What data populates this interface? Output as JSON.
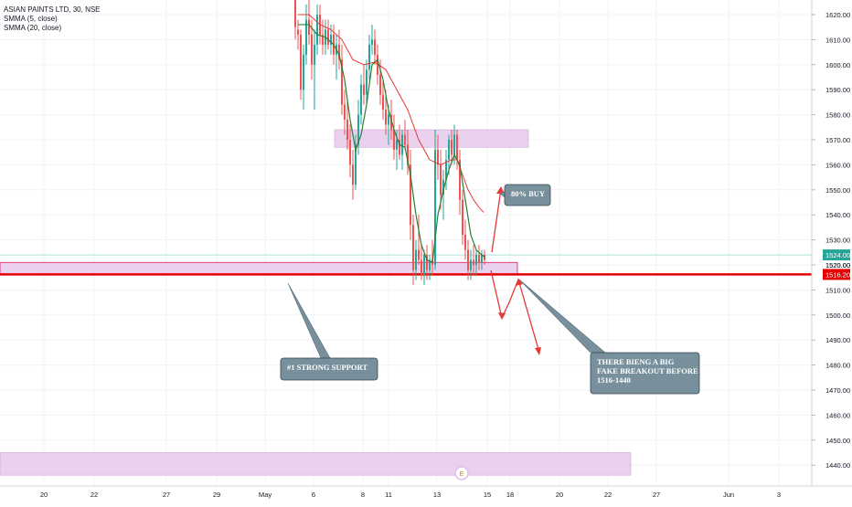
{
  "legend": {
    "symbol": "ASIAN PAINTS LTD, 30, NSE",
    "ind1": "SMMA (5, close)",
    "ind2": "SMMA (20, close)"
  },
  "colors": {
    "up": "#26a69a",
    "down": "#ef5350",
    "smma5": "#2e7d32",
    "smma20": "#e53935",
    "zone": "#e1bee7",
    "callout": "#78909c",
    "current": "#26a69a",
    "level": "#e60000"
  },
  "chart_data": {
    "type": "candlestick",
    "y_axis": {
      "min": 1434,
      "max": 1626,
      "ticks": [
        1440,
        1450,
        1460,
        1470,
        1480,
        1490,
        1500,
        1510,
        1520,
        1530,
        1540,
        1550,
        1560,
        1570,
        1580,
        1590,
        1600,
        1610,
        1620
      ]
    },
    "x_axis": {
      "tick_labels": [
        "20",
        "22",
        "27",
        "29",
        "May",
        "6",
        "8",
        "11",
        "13",
        "15",
        "18",
        "20",
        "22",
        "27",
        "Jun",
        "3"
      ]
    },
    "price_labels": {
      "current": "1524.00",
      "level": "1516.20",
      "near": "1520.00"
    },
    "candles": [
      {
        "x": 323,
        "o": 1628,
        "h": 1628,
        "l": 1610,
        "c": 1615
      },
      {
        "x": 326,
        "o": 1614,
        "h": 1618,
        "l": 1606,
        "c": 1612
      },
      {
        "x": 329,
        "o": 1612,
        "h": 1614,
        "l": 1586,
        "c": 1590
      },
      {
        "x": 332,
        "o": 1590,
        "h": 1608,
        "l": 1582,
        "c": 1604
      },
      {
        "x": 335,
        "o": 1604,
        "h": 1624,
        "l": 1600,
        "c": 1618
      },
      {
        "x": 338,
        "o": 1618,
        "h": 1626,
        "l": 1608,
        "c": 1612
      },
      {
        "x": 341,
        "o": 1612,
        "h": 1618,
        "l": 1594,
        "c": 1600
      },
      {
        "x": 344,
        "o": 1600,
        "h": 1614,
        "l": 1582,
        "c": 1608
      },
      {
        "x": 347,
        "o": 1608,
        "h": 1624,
        "l": 1604,
        "c": 1620
      },
      {
        "x": 350,
        "o": 1620,
        "h": 1624,
        "l": 1608,
        "c": 1612
      },
      {
        "x": 353,
        "o": 1612,
        "h": 1618,
        "l": 1604,
        "c": 1608
      },
      {
        "x": 356,
        "o": 1608,
        "h": 1618,
        "l": 1604,
        "c": 1614
      },
      {
        "x": 359,
        "o": 1614,
        "h": 1618,
        "l": 1606,
        "c": 1608
      },
      {
        "x": 362,
        "o": 1608,
        "h": 1616,
        "l": 1604,
        "c": 1612
      },
      {
        "x": 365,
        "o": 1612,
        "h": 1616,
        "l": 1600,
        "c": 1604
      },
      {
        "x": 368,
        "o": 1604,
        "h": 1612,
        "l": 1594,
        "c": 1608
      },
      {
        "x": 371,
        "o": 1608,
        "h": 1614,
        "l": 1598,
        "c": 1602
      },
      {
        "x": 374,
        "o": 1602,
        "h": 1608,
        "l": 1580,
        "c": 1584
      },
      {
        "x": 377,
        "o": 1584,
        "h": 1590,
        "l": 1572,
        "c": 1578
      },
      {
        "x": 380,
        "o": 1578,
        "h": 1586,
        "l": 1566,
        "c": 1570
      },
      {
        "x": 383,
        "o": 1570,
        "h": 1576,
        "l": 1555,
        "c": 1560
      },
      {
        "x": 386,
        "o": 1560,
        "h": 1566,
        "l": 1546,
        "c": 1552
      },
      {
        "x": 389,
        "o": 1552,
        "h": 1572,
        "l": 1550,
        "c": 1568
      },
      {
        "x": 392,
        "o": 1568,
        "h": 1586,
        "l": 1564,
        "c": 1580
      },
      {
        "x": 395,
        "o": 1580,
        "h": 1596,
        "l": 1576,
        "c": 1592
      },
      {
        "x": 398,
        "o": 1592,
        "h": 1600,
        "l": 1584,
        "c": 1588
      },
      {
        "x": 401,
        "o": 1588,
        "h": 1602,
        "l": 1584,
        "c": 1598
      },
      {
        "x": 404,
        "o": 1598,
        "h": 1612,
        "l": 1594,
        "c": 1608
      },
      {
        "x": 407,
        "o": 1608,
        "h": 1616,
        "l": 1604,
        "c": 1610
      },
      {
        "x": 410,
        "o": 1610,
        "h": 1614,
        "l": 1600,
        "c": 1604
      },
      {
        "x": 413,
        "o": 1604,
        "h": 1608,
        "l": 1592,
        "c": 1596
      },
      {
        "x": 416,
        "o": 1596,
        "h": 1602,
        "l": 1584,
        "c": 1588
      },
      {
        "x": 419,
        "o": 1588,
        "h": 1594,
        "l": 1578,
        "c": 1582
      },
      {
        "x": 422,
        "o": 1582,
        "h": 1590,
        "l": 1572,
        "c": 1576
      },
      {
        "x": 425,
        "o": 1576,
        "h": 1584,
        "l": 1568,
        "c": 1580
      },
      {
        "x": 428,
        "o": 1580,
        "h": 1586,
        "l": 1570,
        "c": 1574
      },
      {
        "x": 431,
        "o": 1574,
        "h": 1580,
        "l": 1562,
        "c": 1566
      },
      {
        "x": 434,
        "o": 1566,
        "h": 1574,
        "l": 1558,
        "c": 1570
      },
      {
        "x": 437,
        "o": 1570,
        "h": 1576,
        "l": 1562,
        "c": 1564
      },
      {
        "x": 440,
        "o": 1564,
        "h": 1574,
        "l": 1558,
        "c": 1572
      },
      {
        "x": 443,
        "o": 1572,
        "h": 1578,
        "l": 1566,
        "c": 1568
      },
      {
        "x": 446,
        "o": 1568,
        "h": 1574,
        "l": 1556,
        "c": 1560
      },
      {
        "x": 449,
        "o": 1560,
        "h": 1566,
        "l": 1530,
        "c": 1536
      },
      {
        "x": 452,
        "o": 1536,
        "h": 1540,
        "l": 1512,
        "c": 1518
      },
      {
        "x": 455,
        "o": 1518,
        "h": 1530,
        "l": 1514,
        "c": 1526
      },
      {
        "x": 458,
        "o": 1526,
        "h": 1540,
        "l": 1520,
        "c": 1522
      },
      {
        "x": 461,
        "o": 1522,
        "h": 1528,
        "l": 1514,
        "c": 1516
      },
      {
        "x": 464,
        "o": 1516,
        "h": 1526,
        "l": 1512,
        "c": 1524
      },
      {
        "x": 467,
        "o": 1524,
        "h": 1528,
        "l": 1514,
        "c": 1518
      },
      {
        "x": 470,
        "o": 1518,
        "h": 1524,
        "l": 1514,
        "c": 1522
      },
      {
        "x": 473,
        "o": 1522,
        "h": 1530,
        "l": 1516,
        "c": 1520
      },
      {
        "x": 476,
        "o": 1520,
        "h": 1574,
        "l": 1518,
        "c": 1566
      },
      {
        "x": 479,
        "o": 1566,
        "h": 1572,
        "l": 1554,
        "c": 1560
      },
      {
        "x": 482,
        "o": 1560,
        "h": 1566,
        "l": 1542,
        "c": 1548
      },
      {
        "x": 485,
        "o": 1548,
        "h": 1558,
        "l": 1538,
        "c": 1554
      },
      {
        "x": 488,
        "o": 1554,
        "h": 1566,
        "l": 1550,
        "c": 1562
      },
      {
        "x": 491,
        "o": 1562,
        "h": 1572,
        "l": 1556,
        "c": 1570
      },
      {
        "x": 494,
        "o": 1570,
        "h": 1574,
        "l": 1560,
        "c": 1564
      },
      {
        "x": 497,
        "o": 1564,
        "h": 1576,
        "l": 1560,
        "c": 1572
      },
      {
        "x": 500,
        "o": 1572,
        "h": 1574,
        "l": 1558,
        "c": 1562
      },
      {
        "x": 503,
        "o": 1562,
        "h": 1566,
        "l": 1540,
        "c": 1546
      },
      {
        "x": 506,
        "o": 1546,
        "h": 1550,
        "l": 1528,
        "c": 1532
      },
      {
        "x": 509,
        "o": 1532,
        "h": 1538,
        "l": 1522,
        "c": 1526
      },
      {
        "x": 512,
        "o": 1526,
        "h": 1530,
        "l": 1514,
        "c": 1518
      },
      {
        "x": 515,
        "o": 1518,
        "h": 1526,
        "l": 1514,
        "c": 1522
      },
      {
        "x": 518,
        "o": 1522,
        "h": 1528,
        "l": 1516,
        "c": 1520
      },
      {
        "x": 521,
        "o": 1520,
        "h": 1526,
        "l": 1516,
        "c": 1524
      },
      {
        "x": 524,
        "o": 1524,
        "h": 1528,
        "l": 1518,
        "c": 1521
      },
      {
        "x": 527,
        "o": 1521,
        "h": 1526,
        "l": 1518,
        "c": 1524
      },
      {
        "x": 530,
        "o": 1524,
        "h": 1526,
        "l": 1520,
        "c": 1522
      }
    ],
    "smma5": [
      [
        326,
        1616
      ],
      [
        338,
        1616
      ],
      [
        347,
        1612
      ],
      [
        356,
        1611
      ],
      [
        365,
        1608
      ],
      [
        371,
        1604
      ],
      [
        377,
        1594
      ],
      [
        383,
        1578
      ],
      [
        389,
        1566
      ],
      [
        395,
        1572
      ],
      [
        401,
        1584
      ],
      [
        407,
        1600
      ],
      [
        413,
        1602
      ],
      [
        419,
        1594
      ],
      [
        425,
        1582
      ],
      [
        431,
        1574
      ],
      [
        437,
        1568
      ],
      [
        443,
        1567
      ],
      [
        449,
        1556
      ],
      [
        455,
        1540
      ],
      [
        461,
        1528
      ],
      [
        467,
        1522
      ],
      [
        473,
        1521
      ],
      [
        479,
        1540
      ],
      [
        485,
        1550
      ],
      [
        491,
        1558
      ],
      [
        497,
        1564
      ],
      [
        503,
        1560
      ],
      [
        509,
        1546
      ],
      [
        515,
        1532
      ],
      [
        521,
        1526
      ],
      [
        527,
        1524
      ],
      [
        531,
        1523
      ]
    ],
    "smma20": [
      [
        326,
        1620
      ],
      [
        338,
        1620
      ],
      [
        350,
        1616
      ],
      [
        362,
        1614
      ],
      [
        374,
        1610
      ],
      [
        386,
        1602
      ],
      [
        398,
        1600
      ],
      [
        410,
        1601
      ],
      [
        422,
        1598
      ],
      [
        434,
        1590
      ],
      [
        446,
        1582
      ],
      [
        458,
        1570
      ],
      [
        470,
        1562
      ],
      [
        482,
        1560
      ],
      [
        494,
        1562
      ],
      [
        500,
        1562
      ],
      [
        506,
        1556
      ],
      [
        512,
        1550
      ],
      [
        518,
        1546
      ],
      [
        524,
        1543
      ],
      [
        529,
        1541
      ]
    ],
    "zones": [
      {
        "y_lo": 1567,
        "y_hi": 1574
      },
      {
        "y_lo": 1516,
        "y_hi": 1521
      },
      {
        "y_lo": 1436,
        "y_hi": 1445
      }
    ],
    "annotations": [
      {
        "text": "80% BUY"
      },
      {
        "text": "#1 STRONG SUPPORT"
      },
      {
        "lines": [
          "THERE BIENG A BIG",
          "FAKE BREAKOUT BEFORE",
          "1516-1440"
        ]
      }
    ],
    "event_marker": "E"
  }
}
